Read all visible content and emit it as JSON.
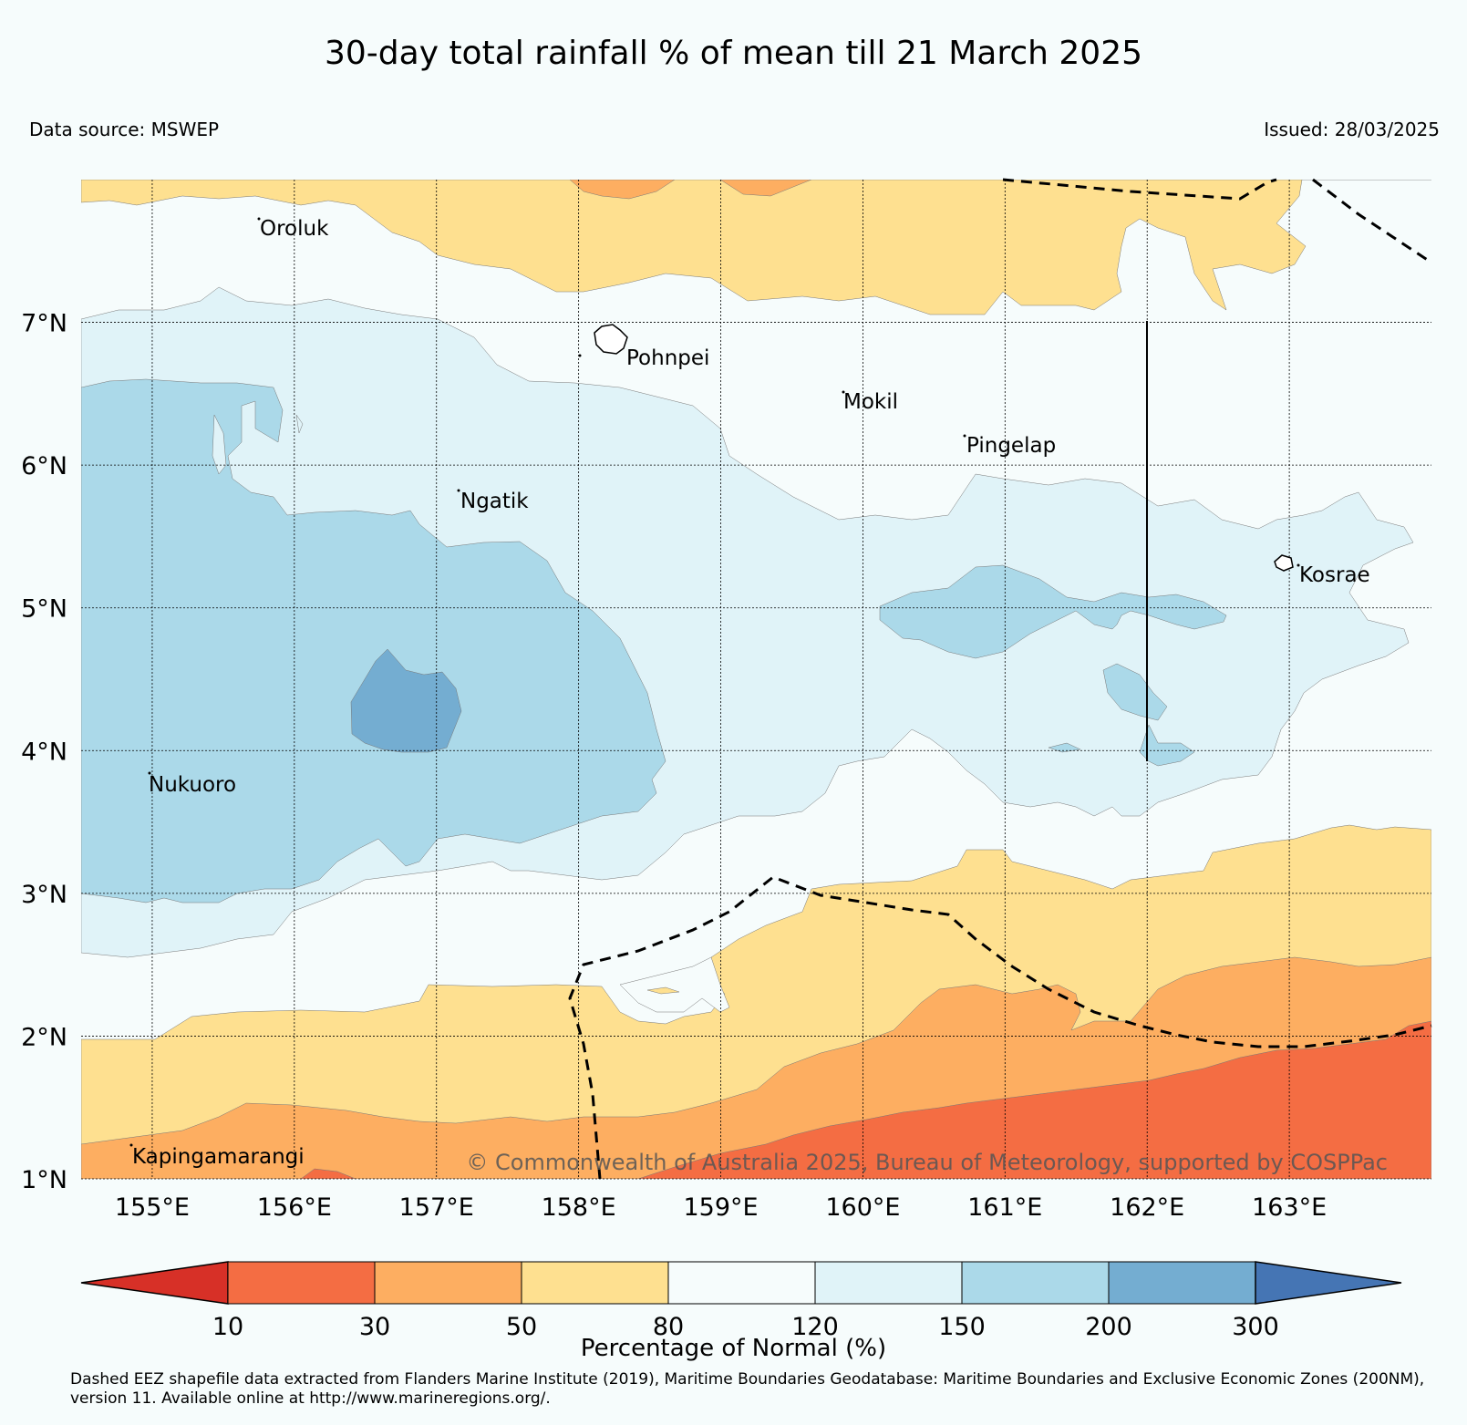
{
  "title": "30-day total rainfall % of mean till 21 March 2025",
  "data_source": "Data source: MSWEP",
  "issued": "Issued: 28/03/2025",
  "copyright": "© Commonwealth of Australia 2025, Bureau of Meteorology, supported by COSPPac",
  "map": {
    "lon_range": [
      154.5,
      164
    ],
    "lat_range": [
      1,
      8
    ],
    "lon_ticks": [
      "155°E",
      "156°E",
      "157°E",
      "158°E",
      "159°E",
      "160°E",
      "161°E",
      "162°E",
      "163°E"
    ],
    "lat_ticks": [
      "1°N",
      "2°N",
      "3°N",
      "4°N",
      "5°N",
      "6°N",
      "7°N"
    ],
    "grid": "dotted",
    "islands": [
      {
        "name": "Oroluk"
      },
      {
        "name": "Pohnpei"
      },
      {
        "name": "Mokil"
      },
      {
        "name": "Pingelap"
      },
      {
        "name": "Ngatik"
      },
      {
        "name": "Kosrae"
      },
      {
        "name": "Nukuoro"
      },
      {
        "name": "Kapingamarangi"
      }
    ]
  },
  "legend": {
    "title": "Percentage of Normal (%)",
    "ticks": [
      "10",
      "30",
      "50",
      "80",
      "120",
      "150",
      "200",
      "300"
    ],
    "colors": [
      "#d73027",
      "#f46d43",
      "#fdae61",
      "#fee090",
      "#f6fcfc",
      "#e0f3f8",
      "#abd9e9",
      "#74add1",
      "#4575b4"
    ]
  },
  "footnote": "Dashed EEZ shapefile data extracted from Flanders Marine Institute (2019), Maritime Boundaries Geodatabase: Maritime Boundaries and Exclusive Economic Zones (200NM), version 11. Available online at http://www.marineregions.org/."
}
